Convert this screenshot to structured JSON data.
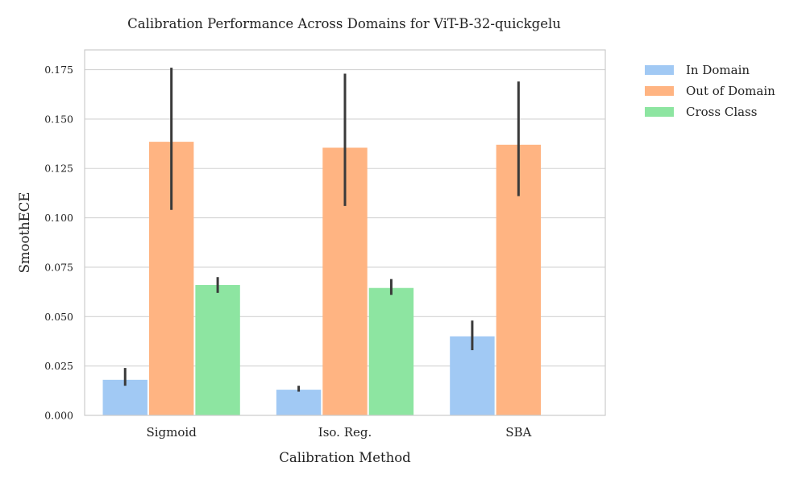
{
  "chart_data": {
    "type": "bar",
    "title": "Calibration Performance Across Domains for ViT-B-32-quickgelu",
    "xlabel": "Calibration Method",
    "ylabel": "SmoothECE",
    "categories": [
      "Sigmoid",
      "Iso. Reg.",
      "SBA"
    ],
    "ylim": [
      0,
      0.185
    ],
    "yticks": [
      0.0,
      0.025,
      0.05,
      0.075,
      0.1,
      0.125,
      0.15,
      0.175
    ],
    "ytick_labels": [
      "0.000",
      "0.025",
      "0.050",
      "0.075",
      "0.100",
      "0.125",
      "0.150",
      "0.175"
    ],
    "grid": true,
    "legend_position": "outside top-right",
    "series": [
      {
        "name": "In Domain",
        "color": "#a1c9f4",
        "values": [
          0.018,
          0.013,
          0.04
        ],
        "error_low": [
          0.015,
          0.012,
          0.033
        ],
        "error_high": [
          0.024,
          0.015,
          0.048
        ]
      },
      {
        "name": "Out of Domain",
        "color": "#ffb482",
        "values": [
          0.1385,
          0.1355,
          0.137
        ],
        "error_low": [
          0.104,
          0.106,
          0.111
        ],
        "error_high": [
          0.176,
          0.173,
          0.169
        ]
      },
      {
        "name": "Cross Class",
        "color": "#8de5a1",
        "values": [
          0.066,
          0.0645,
          null
        ],
        "error_low": [
          0.062,
          0.061,
          null
        ],
        "error_high": [
          0.07,
          0.069,
          null
        ]
      }
    ]
  }
}
